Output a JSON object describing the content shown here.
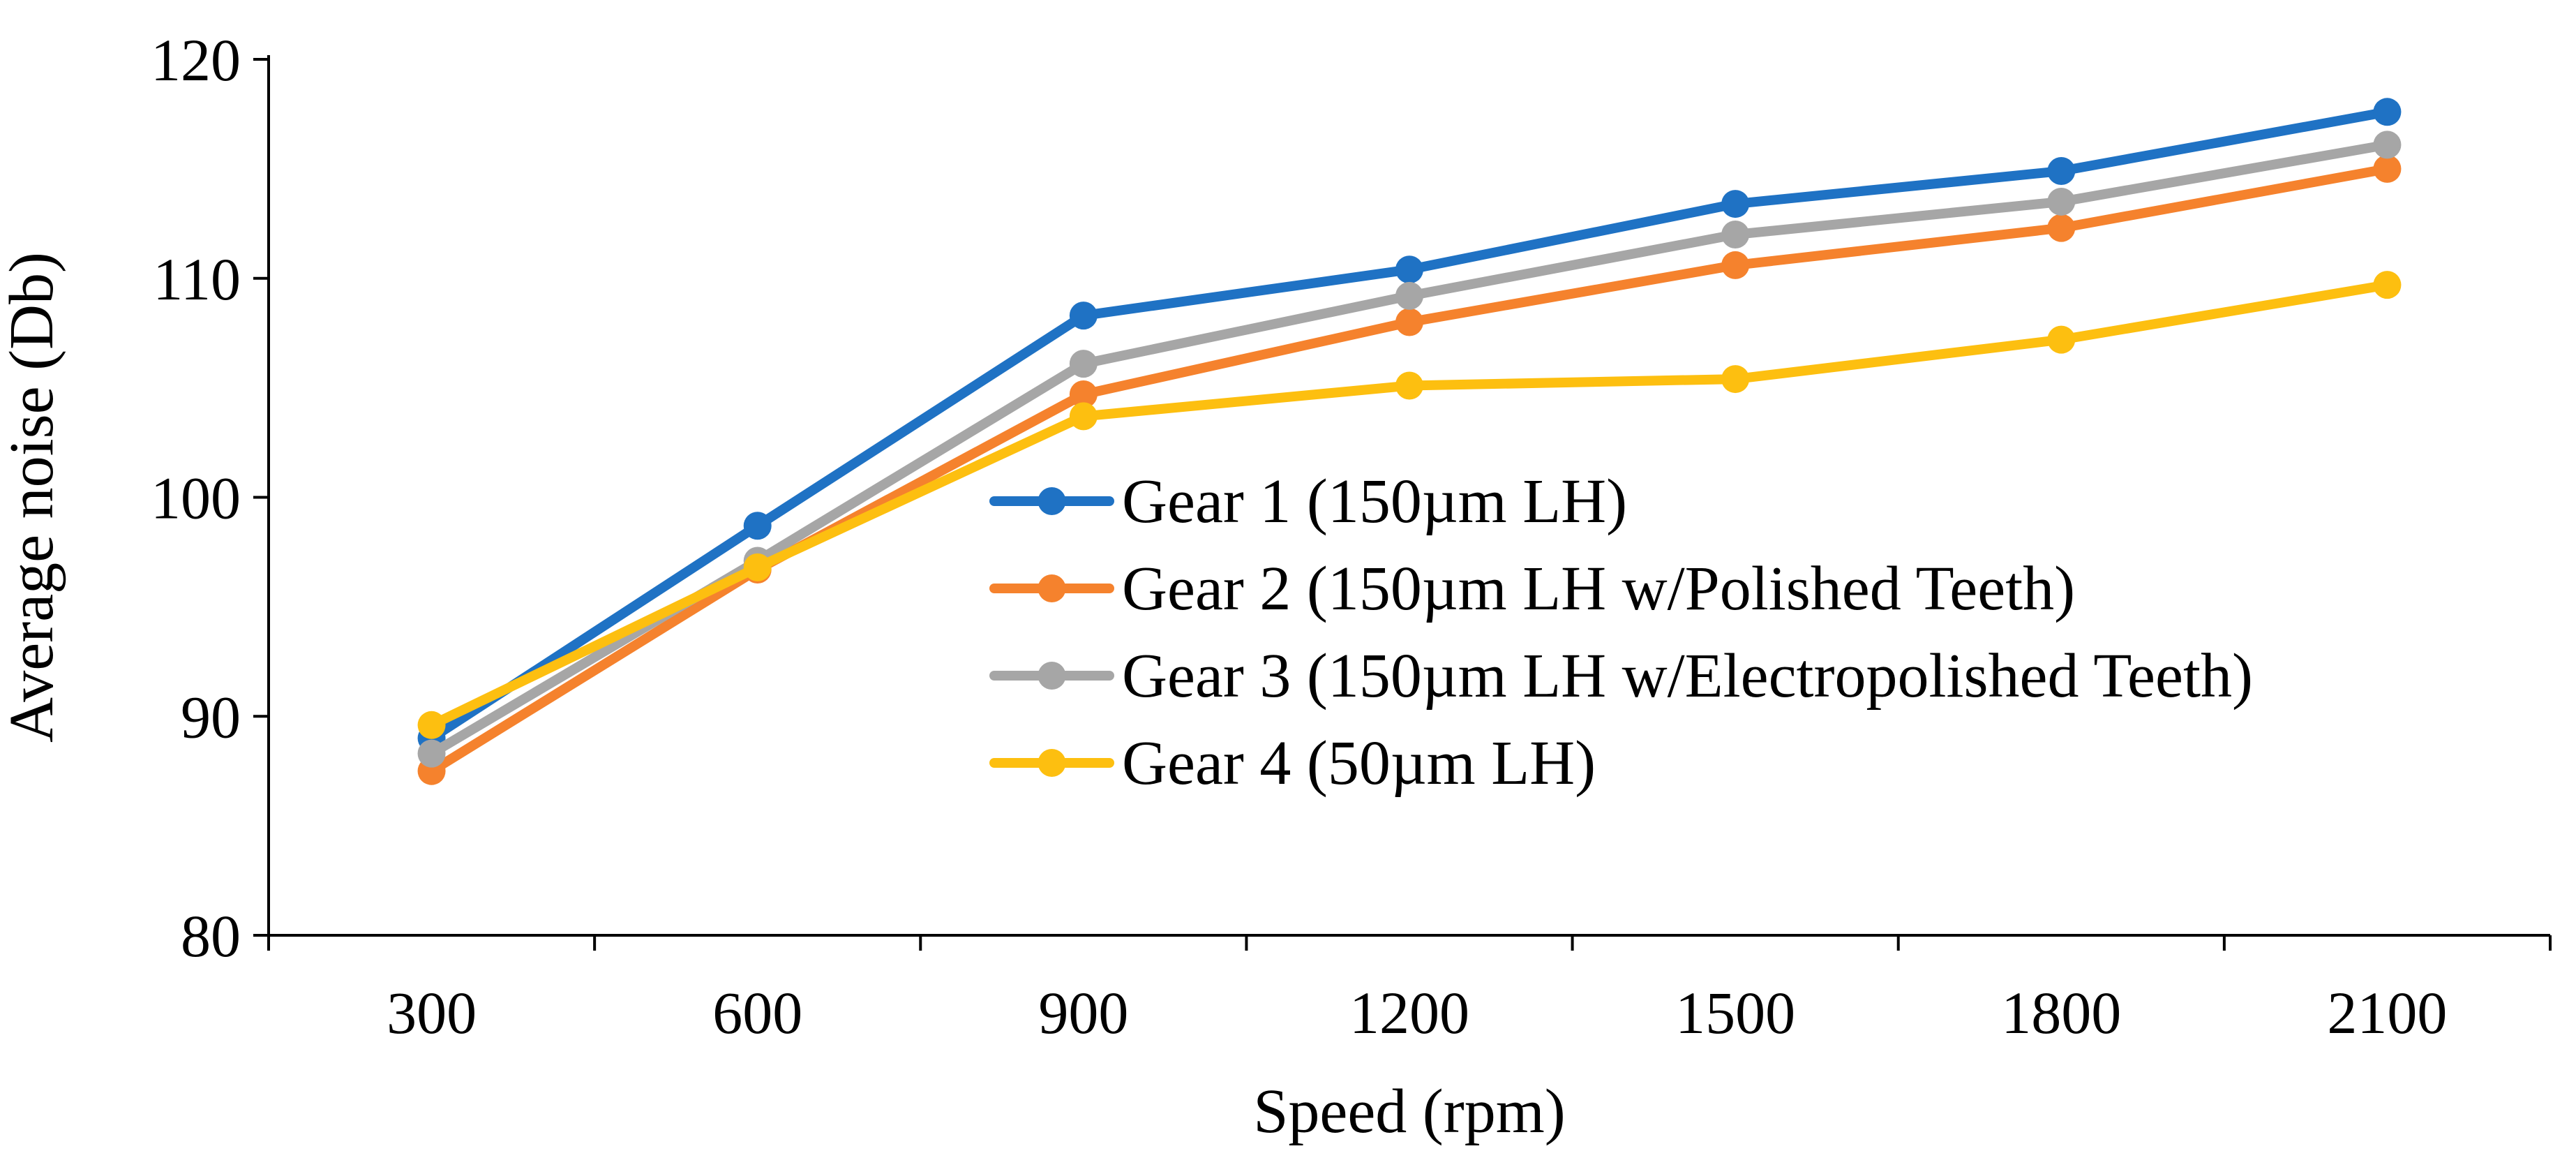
{
  "chart_data": {
    "type": "line",
    "title": "",
    "xlabel": "Speed (rpm)",
    "ylabel": "Average noise (Db)",
    "ylim": [
      80,
      120
    ],
    "yticks": [
      80,
      90,
      100,
      110,
      120
    ],
    "categories": [
      "300",
      "600",
      "900",
      "1200",
      "1500",
      "1800",
      "2100"
    ],
    "grid": false,
    "legend_position": "center",
    "series": [
      {
        "name": "Gear 1 (150µm LH)",
        "color": "#1f72c4",
        "values": [
          89.0,
          98.7,
          108.3,
          110.4,
          113.4,
          114.9,
          117.6
        ]
      },
      {
        "name": "Gear 2 (150µm LH w/Polished Teeth)",
        "color": "#f5822d",
        "values": [
          87.5,
          96.7,
          104.7,
          108.0,
          110.6,
          112.3,
          115.0
        ]
      },
      {
        "name": "Gear 3 (150µm LH w/Electropolished Teeth)",
        "color": "#a6a6a6",
        "values": [
          88.3,
          97.1,
          106.1,
          109.2,
          112.0,
          113.5,
          116.1
        ]
      },
      {
        "name": "Gear 4 (50µm LH)",
        "color": "#fdbf10",
        "values": [
          89.6,
          96.8,
          103.7,
          105.1,
          105.4,
          107.2,
          109.7
        ]
      }
    ]
  }
}
